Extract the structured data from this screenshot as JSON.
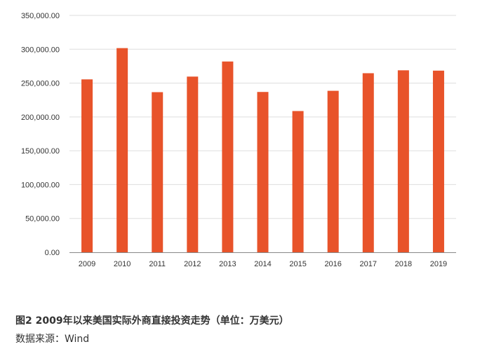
{
  "chart_data": {
    "type": "bar",
    "title": "",
    "xlabel": "",
    "ylabel": "",
    "categories": [
      "2009",
      "2010",
      "2011",
      "2012",
      "2013",
      "2014",
      "2015",
      "2016",
      "2017",
      "2018",
      "2019"
    ],
    "values": [
      255500,
      301700,
      236600,
      259600,
      281900,
      236900,
      208700,
      238600,
      264600,
      268900,
      268400
    ],
    "ylim": [
      0,
      350000
    ],
    "yticks": [
      "0.00",
      "50,000.00",
      "100,000.00",
      "150,000.00",
      "200,000.00",
      "250,000.00",
      "300,000.00",
      "350,000.00"
    ],
    "grid": true,
    "legend": "none",
    "bar_color": "#e8532a",
    "grid_color": "#dddddd",
    "axis_color": "#888888"
  },
  "caption": {
    "title": "图2  2009年以来美国实际外商直接投资走势（单位：万美元）",
    "source": "数据来源：Wind"
  }
}
